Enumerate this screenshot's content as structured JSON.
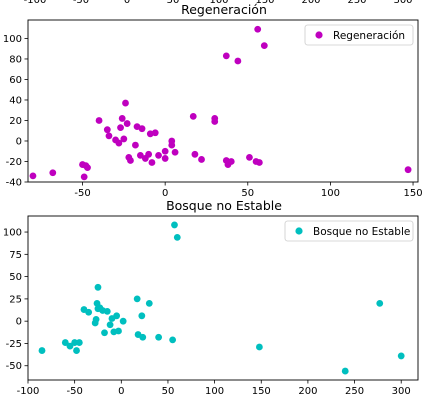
{
  "chart_data": [
    {
      "type": "scatter",
      "title": "Regeneración",
      "xlabel": "",
      "ylabel": "",
      "xlim": [
        -83,
        153
      ],
      "ylim": [
        -40,
        118
      ],
      "xticks": [
        -50,
        0,
        50,
        100,
        150
      ],
      "yticks": [
        -40,
        -20,
        0,
        20,
        40,
        60,
        80,
        100
      ],
      "top_ticks": [
        "-100",
        "-50",
        "0",
        "50",
        "100",
        "150",
        "200",
        "250",
        "300"
      ],
      "grid": false,
      "legend": "top-right",
      "series": [
        {
          "name": "Regeneración",
          "color": "#bf00bf",
          "points": [
            [
              -80,
              -34
            ],
            [
              -68,
              -31
            ],
            [
              -50,
              -23
            ],
            [
              -48,
              -24
            ],
            [
              -47,
              -26
            ],
            [
              -49,
              -35
            ],
            [
              -40,
              20
            ],
            [
              -35,
              11
            ],
            [
              -34,
              5
            ],
            [
              -30,
              1
            ],
            [
              -28,
              -2
            ],
            [
              -27,
              13
            ],
            [
              -26,
              22
            ],
            [
              -25,
              2
            ],
            [
              -24,
              37
            ],
            [
              -23,
              17
            ],
            [
              -22,
              -16
            ],
            [
              -21,
              -19
            ],
            [
              -18,
              -4
            ],
            [
              -17,
              14
            ],
            [
              -15,
              -14
            ],
            [
              -14,
              12
            ],
            [
              -12,
              -17
            ],
            [
              -10,
              -13
            ],
            [
              -9,
              7
            ],
            [
              -8,
              -21
            ],
            [
              -6,
              8
            ],
            [
              -4,
              -14
            ],
            [
              0,
              -10
            ],
            [
              0,
              -17
            ],
            [
              4,
              0
            ],
            [
              4,
              -4
            ],
            [
              6,
              -11
            ],
            [
              17,
              24
            ],
            [
              18,
              -13
            ],
            [
              22,
              -18
            ],
            [
              30,
              22
            ],
            [
              30,
              19
            ],
            [
              37,
              -19
            ],
            [
              37,
              83
            ],
            [
              38,
              -23
            ],
            [
              40,
              -20
            ],
            [
              44,
              78
            ],
            [
              51,
              -16
            ],
            [
              55,
              -20
            ],
            [
              56,
              109
            ],
            [
              57,
              -21
            ],
            [
              60,
              93
            ],
            [
              147,
              -28
            ]
          ]
        }
      ]
    },
    {
      "type": "scatter",
      "title": "Bosque no Estable",
      "xlabel": "",
      "ylabel": "",
      "xlim": [
        -100,
        318
      ],
      "ylim": [
        -66,
        118
      ],
      "xticks": [
        -100,
        -50,
        0,
        50,
        100,
        150,
        200,
        250,
        300
      ],
      "yticks": [
        -50,
        -25,
        0,
        25,
        50,
        75,
        100
      ],
      "grid": false,
      "legend": "top-right",
      "series": [
        {
          "name": "Bosque no Estable",
          "color": "#00bfbf",
          "points": [
            [
              -85,
              -33
            ],
            [
              -60,
              -24
            ],
            [
              -55,
              -28
            ],
            [
              -50,
              -24
            ],
            [
              -48,
              -33
            ],
            [
              -45,
              -24
            ],
            [
              -40,
              13
            ],
            [
              -35,
              10
            ],
            [
              -28,
              -2
            ],
            [
              -27,
              2
            ],
            [
              -26,
              20
            ],
            [
              -25,
              38
            ],
            [
              -25,
              14
            ],
            [
              -23,
              15
            ],
            [
              -20,
              12
            ],
            [
              -18,
              -13
            ],
            [
              -15,
              11
            ],
            [
              -12,
              -4
            ],
            [
              -10,
              3
            ],
            [
              -8,
              -12
            ],
            [
              -5,
              6
            ],
            [
              -3,
              -11
            ],
            [
              2,
              0
            ],
            [
              17,
              25
            ],
            [
              18,
              -15
            ],
            [
              22,
              6
            ],
            [
              23,
              -18
            ],
            [
              30,
              20
            ],
            [
              40,
              -18
            ],
            [
              55,
              -21
            ],
            [
              57,
              108
            ],
            [
              60,
              94
            ],
            [
              148,
              -29
            ],
            [
              240,
              -56
            ],
            [
              277,
              20
            ],
            [
              300,
              -39
            ]
          ]
        }
      ]
    }
  ]
}
